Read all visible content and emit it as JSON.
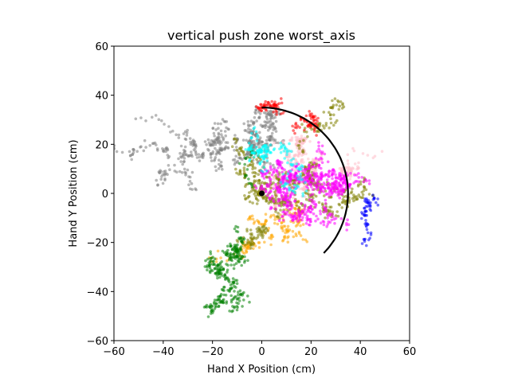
{
  "chart_data": {
    "type": "scatter",
    "title": "vertical push zone worst_axis",
    "xlabel": "Hand X Position (cm)",
    "ylabel": "Hand Y Position (cm)",
    "xlim": [
      -60,
      60
    ],
    "ylim": [
      -60,
      60
    ],
    "xticks": [
      -60,
      -40,
      -20,
      0,
      20,
      40,
      60
    ],
    "yticks": [
      -60,
      -40,
      -20,
      0,
      20,
      40,
      60
    ],
    "grid": false,
    "series": [
      {
        "color": "#808080",
        "center": [
          -10,
          15
        ],
        "spread": [
          22,
          18
        ],
        "count": 520
      },
      {
        "color": "#ffc0cb",
        "center": [
          15,
          5
        ],
        "spread": [
          20,
          22
        ],
        "count": 380
      },
      {
        "color": "#ffa500",
        "center": [
          10,
          -10
        ],
        "spread": [
          22,
          25
        ],
        "count": 180
      },
      {
        "color": "#808000",
        "center": [
          5,
          0
        ],
        "spread": [
          24,
          22
        ],
        "count": 600
      },
      {
        "color": "#008000",
        "center": [
          -15,
          -25
        ],
        "spread": [
          10,
          20
        ],
        "count": 320
      },
      {
        "color": "#ff00ff",
        "center": [
          15,
          5
        ],
        "spread": [
          14,
          16
        ],
        "count": 620
      },
      {
        "color": "#00ffff",
        "center": [
          5,
          15
        ],
        "spread": [
          10,
          14
        ],
        "count": 160
      },
      {
        "color": "#ff0000",
        "center": [
          12,
          20
        ],
        "spread": [
          16,
          10
        ],
        "count": 120
      },
      {
        "color": "#0000ff",
        "center": [
          38,
          -5
        ],
        "spread": [
          4,
          8
        ],
        "count": 60
      }
    ],
    "reach_arc": {
      "radius": 35,
      "start_deg": -45,
      "end_deg": 90,
      "color": "#000000"
    },
    "origin_point": {
      "x": 0,
      "y": 0,
      "color": "#000000"
    }
  }
}
